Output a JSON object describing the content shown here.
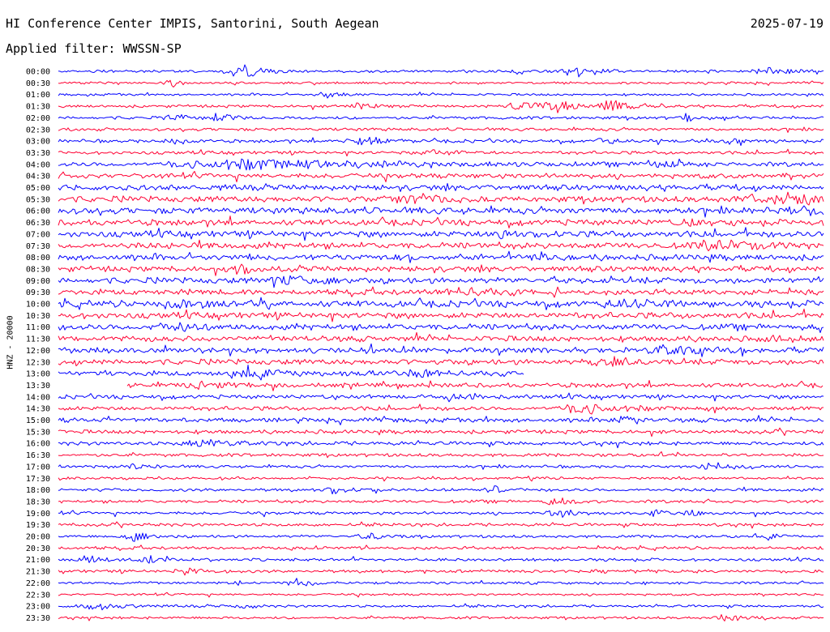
{
  "header": {
    "title": "HI Conference Center IMPIS, Santorini, South Aegean",
    "date": "2025-07-19",
    "filter": "Applied filter: WWSSN-SP",
    "channel": "HNZ - 20000"
  },
  "colors": {
    "even_trace": "#0000ff",
    "odd_trace": "#ff0033",
    "background": "#ffffff",
    "text": "#000000"
  },
  "chart_data": {
    "type": "line",
    "title": "HI Conference Center IMPIS, Santorini, South Aegean",
    "subtitle": "Applied filter: WWSSN-SP",
    "ylabel": "HNZ - 20000",
    "xlabel": "",
    "grid": false,
    "x_range_minutes": [
      0,
      30
    ],
    "row_labels": [
      "00:00",
      "00:30",
      "01:00",
      "01:30",
      "02:00",
      "02:30",
      "03:00",
      "03:30",
      "04:00",
      "04:30",
      "05:00",
      "05:30",
      "06:00",
      "06:30",
      "07:00",
      "07:30",
      "08:00",
      "08:30",
      "09:00",
      "09:30",
      "10:00",
      "10:30",
      "11:00",
      "11:30",
      "12:00",
      "12:30",
      "13:00",
      "13:30",
      "14:00",
      "14:30",
      "15:00",
      "15:30",
      "16:00",
      "16:30",
      "17:00",
      "17:30",
      "18:00",
      "18:30",
      "19:00",
      "19:30",
      "20:00",
      "20:30",
      "21:00",
      "21:30",
      "22:00",
      "22:30",
      "23:00",
      "23:30"
    ],
    "row_noise_level": [
      0.25,
      0.22,
      0.22,
      0.28,
      0.3,
      0.3,
      0.32,
      0.32,
      0.45,
      0.5,
      0.55,
      0.6,
      0.65,
      0.6,
      0.62,
      0.62,
      0.6,
      0.55,
      0.6,
      0.55,
      0.65,
      0.6,
      0.6,
      0.55,
      0.55,
      0.55,
      0.5,
      0.45,
      0.4,
      0.4,
      0.42,
      0.38,
      0.38,
      0.32,
      0.28,
      0.25,
      0.3,
      0.3,
      0.3,
      0.3,
      0.28,
      0.3,
      0.28,
      0.3,
      0.25,
      0.22,
      0.25,
      0.25
    ],
    "row_coverage": [
      [
        0.0,
        1.0
      ],
      [
        0.0,
        1.0
      ],
      [
        0.0,
        1.0
      ],
      [
        0.0,
        1.0
      ],
      [
        0.0,
        1.0
      ],
      [
        0.0,
        1.0
      ],
      [
        0.0,
        1.0
      ],
      [
        0.0,
        1.0
      ],
      [
        0.0,
        1.0
      ],
      [
        0.0,
        1.0
      ],
      [
        0.0,
        1.0
      ],
      [
        0.0,
        1.0
      ],
      [
        0.0,
        1.0
      ],
      [
        0.0,
        1.0
      ],
      [
        0.0,
        1.0
      ],
      [
        0.0,
        1.0
      ],
      [
        0.0,
        1.0
      ],
      [
        0.0,
        1.0
      ],
      [
        0.0,
        1.0
      ],
      [
        0.0,
        1.0
      ],
      [
        0.0,
        1.0
      ],
      [
        0.0,
        1.0
      ],
      [
        0.0,
        1.0
      ],
      [
        0.0,
        1.0
      ],
      [
        0.0,
        1.0
      ],
      [
        0.0,
        1.0
      ],
      [
        0.0,
        0.61
      ],
      [
        0.09,
        1.0
      ],
      [
        0.0,
        1.0
      ],
      [
        0.0,
        1.0
      ],
      [
        0.0,
        1.0
      ],
      [
        0.0,
        1.0
      ],
      [
        0.0,
        1.0
      ],
      [
        0.0,
        1.0
      ],
      [
        0.0,
        1.0
      ],
      [
        0.0,
        1.0
      ],
      [
        0.0,
        1.0
      ],
      [
        0.0,
        1.0
      ],
      [
        0.0,
        1.0
      ],
      [
        0.0,
        1.0
      ],
      [
        0.0,
        1.0
      ],
      [
        0.0,
        1.0
      ],
      [
        0.0,
        1.0
      ],
      [
        0.0,
        1.0
      ],
      [
        0.0,
        1.0
      ],
      [
        0.0,
        1.0
      ],
      [
        0.0,
        1.0
      ],
      [
        0.0,
        1.0
      ]
    ],
    "events": [
      {
        "row": 0,
        "t": 0.24,
        "amp": 1.6,
        "dur": 0.03
      },
      {
        "row": 0,
        "t": 0.6,
        "amp": 0.8,
        "dur": 0.015
      },
      {
        "row": 0,
        "t": 0.68,
        "amp": 1.2,
        "dur": 0.03
      },
      {
        "row": 0,
        "t": 0.93,
        "amp": 1.0,
        "dur": 0.03
      },
      {
        "row": 1,
        "t": 0.15,
        "amp": 0.8,
        "dur": 0.015
      },
      {
        "row": 2,
        "t": 0.35,
        "amp": 0.7,
        "dur": 0.02
      },
      {
        "row": 3,
        "t": 0.39,
        "amp": 0.8,
        "dur": 0.02
      },
      {
        "row": 3,
        "t": 0.6,
        "amp": 1.0,
        "dur": 0.02
      },
      {
        "row": 3,
        "t": 0.65,
        "amp": 1.3,
        "dur": 0.04
      },
      {
        "row": 3,
        "t": 0.72,
        "amp": 1.0,
        "dur": 0.03
      },
      {
        "row": 4,
        "t": 0.15,
        "amp": 0.9,
        "dur": 0.02
      },
      {
        "row": 4,
        "t": 0.21,
        "amp": 1.0,
        "dur": 0.025
      },
      {
        "row": 4,
        "t": 0.82,
        "amp": 1.0,
        "dur": 0.01
      },
      {
        "row": 6,
        "t": 0.15,
        "amp": 0.8,
        "dur": 0.015
      },
      {
        "row": 6,
        "t": 0.4,
        "amp": 0.9,
        "dur": 0.03
      },
      {
        "row": 6,
        "t": 0.71,
        "amp": 0.8,
        "dur": 0.015
      },
      {
        "row": 6,
        "t": 0.88,
        "amp": 0.7,
        "dur": 0.015
      },
      {
        "row": 7,
        "t": 0.5,
        "amp": 0.7,
        "dur": 0.03
      },
      {
        "row": 8,
        "t": 0.26,
        "amp": 1.2,
        "dur": 0.14
      },
      {
        "row": 8,
        "t": 0.78,
        "amp": 0.8,
        "dur": 0.02
      },
      {
        "row": 11,
        "t": 0.47,
        "amp": 0.8,
        "dur": 0.05
      },
      {
        "row": 11,
        "t": 0.92,
        "amp": 0.8,
        "dur": 0.04
      },
      {
        "row": 11,
        "t": 0.97,
        "amp": 0.9,
        "dur": 0.04
      },
      {
        "row": 12,
        "t": 0.97,
        "amp": 1.1,
        "dur": 0.03
      },
      {
        "row": 13,
        "t": 0.82,
        "amp": 0.8,
        "dur": 0.02
      },
      {
        "row": 14,
        "t": 0.58,
        "amp": 0.8,
        "dur": 0.03
      },
      {
        "row": 15,
        "t": 0.87,
        "amp": 1.0,
        "dur": 0.05
      },
      {
        "row": 16,
        "t": 0.63,
        "amp": 0.9,
        "dur": 0.02
      },
      {
        "row": 17,
        "t": 0.24,
        "amp": 0.9,
        "dur": 0.02
      },
      {
        "row": 18,
        "t": 0.3,
        "amp": 0.8,
        "dur": 0.03
      },
      {
        "row": 19,
        "t": 0.53,
        "amp": 1.0,
        "dur": 0.04
      },
      {
        "row": 20,
        "t": 0.16,
        "amp": 0.8,
        "dur": 0.04
      },
      {
        "row": 20,
        "t": 0.74,
        "amp": 0.8,
        "dur": 0.03
      },
      {
        "row": 22,
        "t": 0.15,
        "amp": 0.7,
        "dur": 0.03
      },
      {
        "row": 23,
        "t": 0.94,
        "amp": 0.9,
        "dur": 0.02
      },
      {
        "row": 24,
        "t": 0.8,
        "amp": 0.9,
        "dur": 0.04
      },
      {
        "row": 25,
        "t": 0.72,
        "amp": 0.8,
        "dur": 0.03
      },
      {
        "row": 26,
        "t": 0.26,
        "amp": 0.9,
        "dur": 0.05
      },
      {
        "row": 26,
        "t": 0.47,
        "amp": 0.9,
        "dur": 0.04
      },
      {
        "row": 27,
        "t": 0.19,
        "amp": 0.9,
        "dur": 0.03
      },
      {
        "row": 28,
        "t": 0.53,
        "amp": 0.7,
        "dur": 0.03
      },
      {
        "row": 29,
        "t": 0.69,
        "amp": 1.1,
        "dur": 0.05
      },
      {
        "row": 30,
        "t": 0.74,
        "amp": 0.8,
        "dur": 0.02
      },
      {
        "row": 32,
        "t": 0.19,
        "amp": 0.9,
        "dur": 0.03
      },
      {
        "row": 34,
        "t": 0.1,
        "amp": 0.8,
        "dur": 0.015
      },
      {
        "row": 34,
        "t": 0.86,
        "amp": 0.8,
        "dur": 0.03
      },
      {
        "row": 36,
        "t": 0.36,
        "amp": 0.8,
        "dur": 0.02
      },
      {
        "row": 36,
        "t": 0.57,
        "amp": 0.8,
        "dur": 0.015
      },
      {
        "row": 37,
        "t": 0.65,
        "amp": 0.8,
        "dur": 0.02
      },
      {
        "row": 38,
        "t": 0.65,
        "amp": 1.0,
        "dur": 0.02
      },
      {
        "row": 38,
        "t": 0.78,
        "amp": 0.8,
        "dur": 0.015
      },
      {
        "row": 38,
        "t": 0.83,
        "amp": 0.8,
        "dur": 0.015
      },
      {
        "row": 40,
        "t": 0.1,
        "amp": 1.0,
        "dur": 0.02
      },
      {
        "row": 40,
        "t": 0.41,
        "amp": 0.9,
        "dur": 0.02
      },
      {
        "row": 40,
        "t": 0.93,
        "amp": 0.7,
        "dur": 0.015
      },
      {
        "row": 42,
        "t": 0.04,
        "amp": 1.0,
        "dur": 0.015
      },
      {
        "row": 42,
        "t": 0.12,
        "amp": 0.8,
        "dur": 0.02
      },
      {
        "row": 43,
        "t": 0.17,
        "amp": 0.8,
        "dur": 0.02
      },
      {
        "row": 44,
        "t": 0.23,
        "amp": 0.8,
        "dur": 0.01
      },
      {
        "row": 44,
        "t": 0.31,
        "amp": 0.9,
        "dur": 0.02
      },
      {
        "row": 46,
        "t": 0.05,
        "amp": 0.9,
        "dur": 0.03
      },
      {
        "row": 46,
        "t": 0.24,
        "amp": 0.8,
        "dur": 0.01
      },
      {
        "row": 47,
        "t": 0.87,
        "amp": 0.8,
        "dur": 0.02
      }
    ]
  }
}
